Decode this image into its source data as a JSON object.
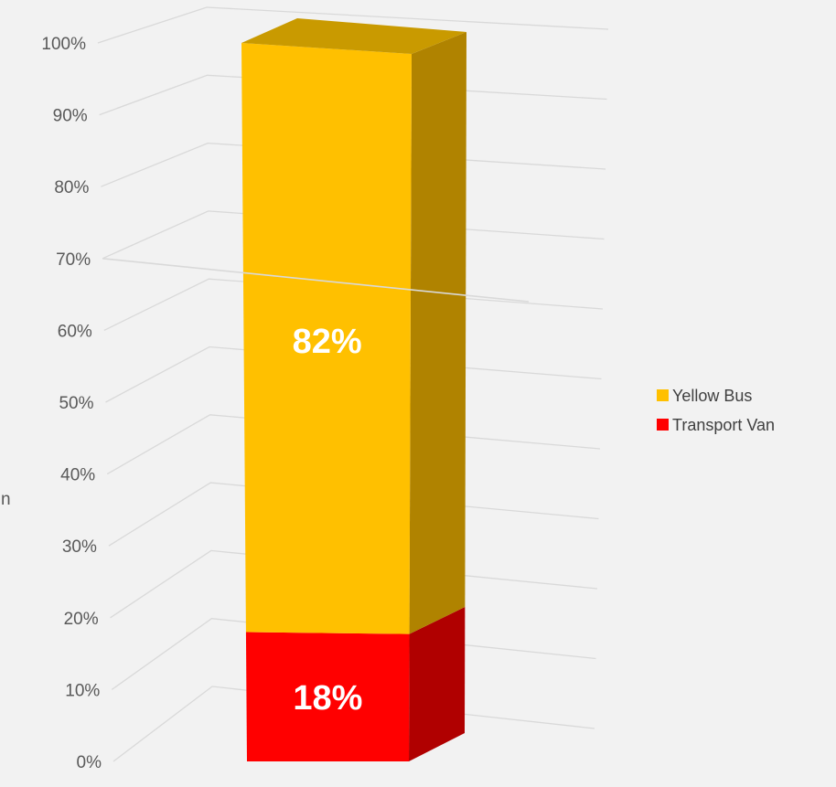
{
  "chart_data": {
    "type": "bar",
    "subtype": "3d-stacked-100-percent-column",
    "categories": [
      ""
    ],
    "series": [
      {
        "name": "Transport Van",
        "values": [
          18
        ],
        "color": "#ff0000",
        "side_color": "#b00000",
        "label": "18%"
      },
      {
        "name": "Yellow Bus",
        "values": [
          82
        ],
        "color": "#ffc000",
        "side_color": "#b08300",
        "label": "82%"
      }
    ],
    "ylim": [
      0,
      100
    ],
    "y_ticks": [
      "0%",
      "10%",
      "20%",
      "30%",
      "40%",
      "50%",
      "60%",
      "70%",
      "80%",
      "90%",
      "100%"
    ],
    "grid": true,
    "legend_position": "right",
    "colors": {
      "background": "#f2f2f2",
      "gridline": "#d9d9d9"
    },
    "partial_text": "n"
  }
}
